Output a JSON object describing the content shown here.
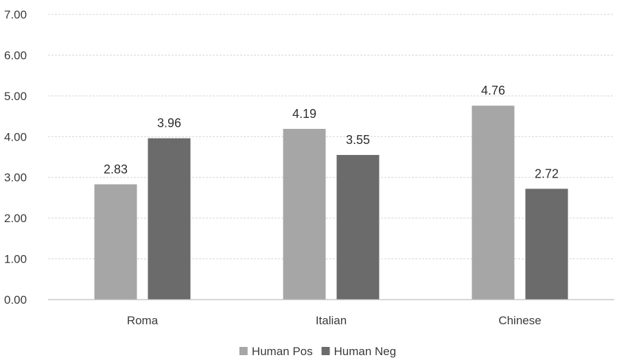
{
  "chart_data": {
    "type": "bar",
    "categories": [
      "Roma",
      "Italian",
      "Chinese"
    ],
    "series": [
      {
        "name": "Human Pos",
        "values": [
          2.83,
          4.19,
          4.76
        ],
        "color": "#a6a6a6"
      },
      {
        "name": "Human Neg",
        "values": [
          3.96,
          3.55,
          2.72
        ],
        "color": "#6b6b6b"
      }
    ],
    "data_labels": [
      [
        "2.83",
        "4.19",
        "4.76"
      ],
      [
        "3.96",
        "3.55",
        "2.72"
      ]
    ],
    "ylim": [
      0,
      7
    ],
    "yticks": [
      "0.00",
      "1.00",
      "2.00",
      "3.00",
      "4.00",
      "5.00",
      "6.00",
      "7.00"
    ],
    "grid": true,
    "legend": "bottom-center"
  }
}
